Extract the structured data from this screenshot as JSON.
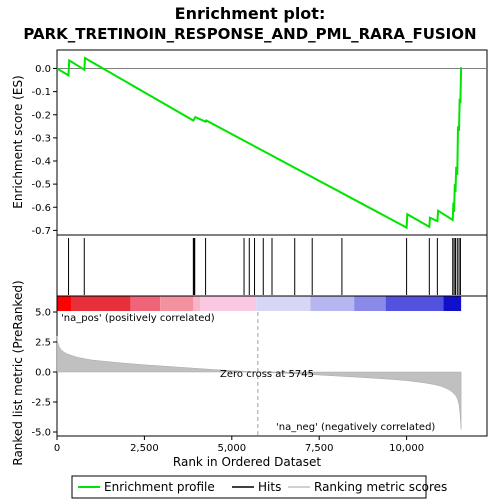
{
  "chart_data": {
    "type": "line",
    "title": "Enrichment plot:",
    "subtitle": "PARK_TRETINOIN_RESPONSE_AND_PML_RARA_FUSION",
    "top_panel": {
      "ylabel": "Enrichment score (ES)",
      "ylim": [
        -0.72,
        0.08
      ],
      "yticks": [
        0.0,
        -0.1,
        -0.2,
        -0.3,
        -0.4,
        -0.5,
        -0.6,
        -0.7
      ],
      "ytick_labels": [
        "0.0",
        "-0.1",
        "-0.2",
        "-0.3",
        "-0.4",
        "-0.5",
        "-0.6",
        "-0.7"
      ],
      "series": [
        {
          "name": "Enrichment profile",
          "color": "#00e400",
          "x": [
            0,
            330,
            350,
            780,
            800,
            3900,
            3920,
            3940,
            3960,
            4250,
            4270,
            10000,
            10020,
            10650,
            10670,
            10880,
            10900,
            11320,
            11340,
            11360,
            11380,
            11400,
            11420,
            11450,
            11470,
            11500,
            11520,
            11540,
            11560
          ],
          "y": [
            0.0,
            -0.03,
            0.035,
            -0.005,
            0.045,
            -0.225,
            -0.22,
            -0.215,
            -0.21,
            -0.23,
            -0.225,
            -0.688,
            -0.63,
            -0.685,
            -0.645,
            -0.66,
            -0.615,
            -0.655,
            -0.58,
            -0.62,
            -0.5,
            -0.535,
            -0.425,
            -0.46,
            -0.25,
            -0.27,
            -0.13,
            -0.15,
            0.005
          ]
        }
      ]
    },
    "hits": {
      "name": "Hits",
      "color": "#000000",
      "positions": [
        330,
        780,
        3900,
        3920,
        3940,
        4250,
        5350,
        5500,
        5650,
        5900,
        6150,
        6800,
        7300,
        8150,
        10000,
        10650,
        10880,
        11320,
        11360,
        11400,
        11450,
        11500,
        11540
      ]
    },
    "color_bar": {
      "segments": [
        {
          "from": 0,
          "to": 400,
          "color": "#ff0000"
        },
        {
          "from": 400,
          "to": 2100,
          "color": "#e8303b"
        },
        {
          "from": 2100,
          "to": 2950,
          "color": "#f06478"
        },
        {
          "from": 2950,
          "to": 3900,
          "color": "#f4919e"
        },
        {
          "from": 3900,
          "to": 4100,
          "color": "#f8b4c8"
        },
        {
          "from": 4100,
          "to": 5700,
          "color": "#fbc8e2"
        },
        {
          "from": 5700,
          "to": 7250,
          "color": "#d8d6f6"
        },
        {
          "from": 7250,
          "to": 8500,
          "color": "#b6b6f0"
        },
        {
          "from": 8500,
          "to": 9400,
          "color": "#8a8ae8"
        },
        {
          "from": 9400,
          "to": 11050,
          "color": "#5252de"
        },
        {
          "from": 11050,
          "to": 11560,
          "color": "#1010cc"
        }
      ]
    },
    "bottom_panel": {
      "ylabel": "Ranked list metric (PreRanked)",
      "xlabel": "Rank in Ordered Dataset",
      "ylim": [
        -5.0,
        5.0
      ],
      "yticks": [
        5.0,
        2.5,
        0.0,
        -2.5,
        -5.0
      ],
      "ytick_labels": [
        "5.0",
        "2.5",
        "0.0",
        "-2.5",
        "-5.0"
      ],
      "series": [
        {
          "name": "Ranking metric scores",
          "color": "#c0c0c0",
          "x": [
            0,
            20,
            60,
            120,
            200,
            300,
            450,
            600,
            800,
            1000,
            1500,
            2000,
            2500,
            3000,
            3500,
            4000,
            4500,
            5000,
            5745,
            6500,
            7500,
            8500,
            9500,
            10000,
            10500,
            10800,
            11000,
            11200,
            11300,
            11400,
            11450,
            11500,
            11530,
            11560
          ],
          "y": [
            3.0,
            2.5,
            2.1,
            1.85,
            1.65,
            1.5,
            1.35,
            1.22,
            1.1,
            1.0,
            0.85,
            0.72,
            0.6,
            0.5,
            0.4,
            0.3,
            0.2,
            0.12,
            0.0,
            -0.1,
            -0.25,
            -0.42,
            -0.6,
            -0.72,
            -0.9,
            -1.05,
            -1.2,
            -1.45,
            -1.65,
            -1.95,
            -2.2,
            -2.7,
            -3.5,
            -4.8
          ]
        }
      ],
      "annotations": {
        "pos_label": "'na_pos' (positively correlated)",
        "pos_color": "#cc0000",
        "zero_cross_label": "Zero cross at 5745",
        "zero_cross_x": 5745,
        "neg_label": "'na_neg' (negatively correlated)",
        "neg_color": "#0000cc"
      }
    },
    "xlim": [
      0,
      12300
    ],
    "xticks": [
      0,
      2500,
      5000,
      7500,
      10000
    ],
    "xtick_labels": [
      "0",
      "2,500",
      "5,000",
      "7,500",
      "10,000"
    ],
    "legend": {
      "placement": "bottom",
      "entries": [
        {
          "label": "Enrichment profile",
          "color": "#00e400"
        },
        {
          "label": "Hits",
          "color": "#000000"
        },
        {
          "label": "Ranking metric scores",
          "color": "#c0c0c0"
        }
      ]
    }
  }
}
